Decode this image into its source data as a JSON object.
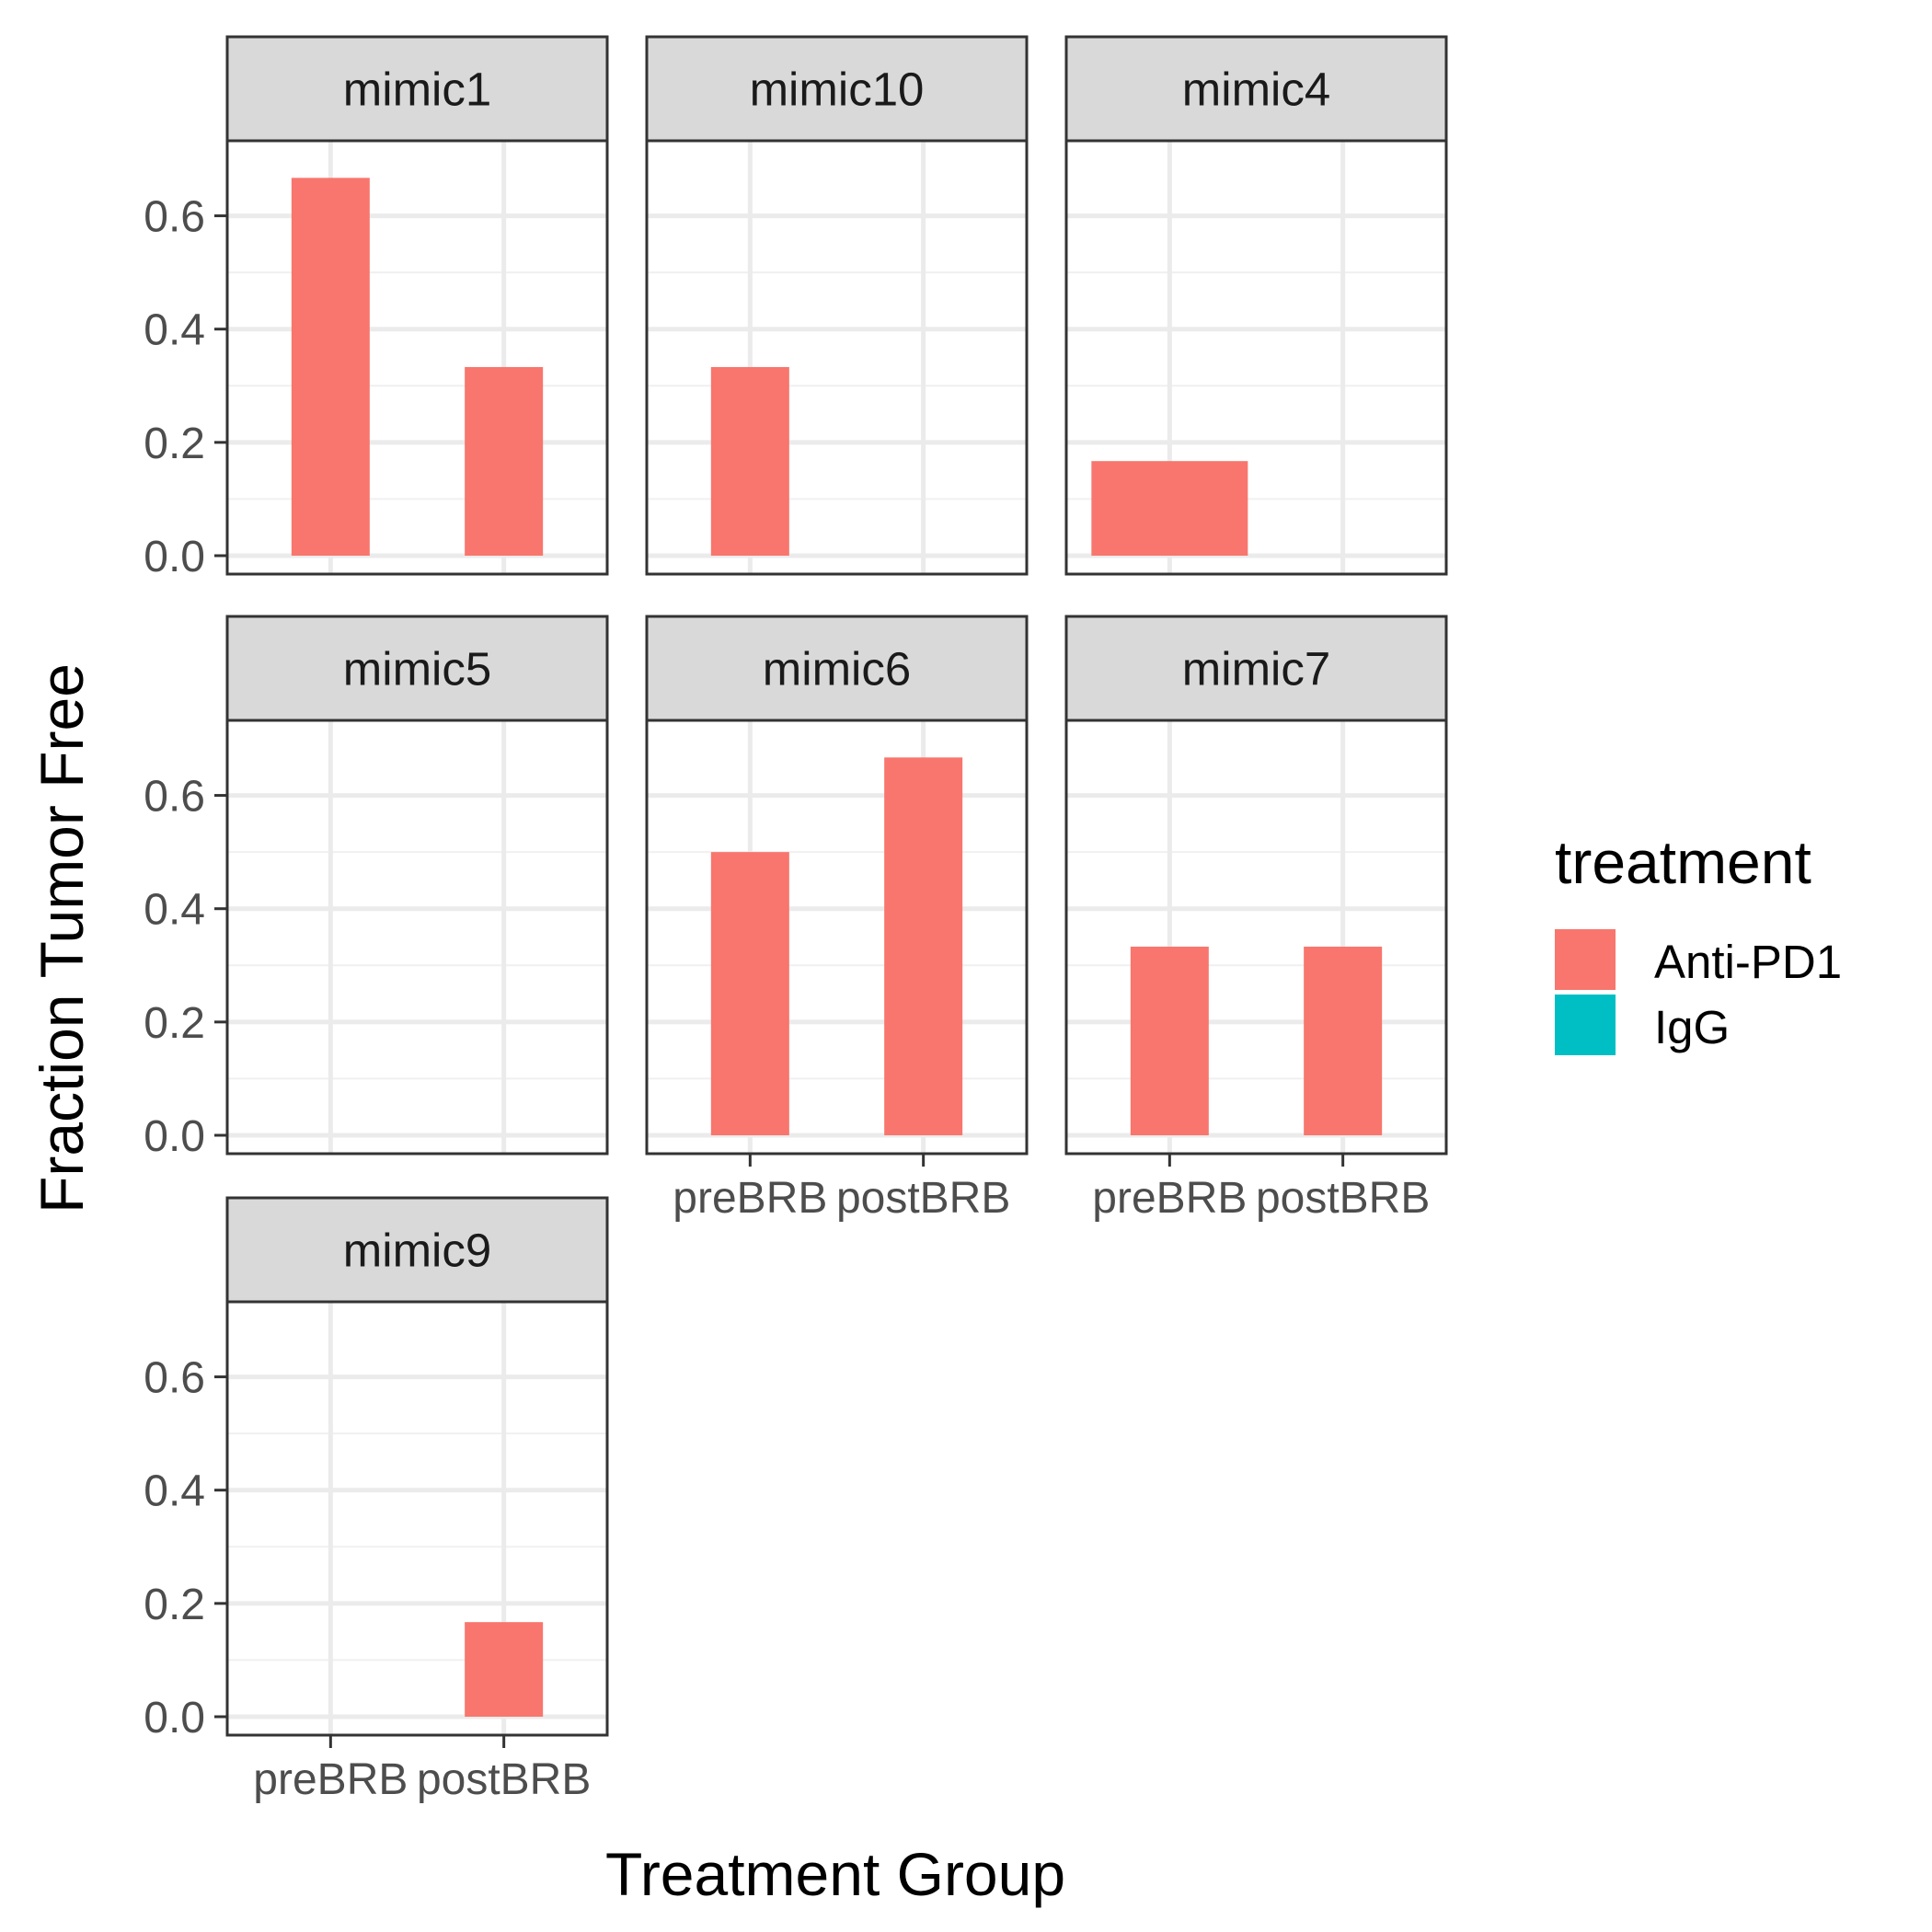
{
  "chart_data": {
    "type": "bar",
    "xlabel": "Treatment Group",
    "ylabel": "Fraction Tumor Free",
    "categories": [
      "preBRB",
      "postBRB"
    ],
    "ylim": [
      0,
      0.7
    ],
    "yticks": [
      0.0,
      0.2,
      0.4,
      0.6
    ],
    "ytick_labels": [
      "0.0",
      "0.2",
      "0.4",
      "0.6"
    ],
    "legend": {
      "title": "treatment",
      "position": "right",
      "entries": [
        {
          "name": "Anti-PD1",
          "color": "#F8766D"
        },
        {
          "name": "IgG",
          "color": "#00BFC4"
        }
      ]
    },
    "grid": true,
    "panels": [
      {
        "name": "mimic1",
        "bars": [
          {
            "x": "preBRB",
            "value": 0.667,
            "series": "Anti-PD1",
            "dodge": true
          },
          {
            "x": "postBRB",
            "value": 0.333,
            "series": "Anti-PD1",
            "dodge": true
          }
        ]
      },
      {
        "name": "mimic10",
        "bars": [
          {
            "x": "preBRB",
            "value": 0.333,
            "series": "Anti-PD1",
            "dodge": true
          }
        ]
      },
      {
        "name": "mimic4",
        "bars": [
          {
            "x": "preBRB",
            "value": 0.167,
            "series": "Anti-PD1",
            "dodge": false
          }
        ]
      },
      {
        "name": "mimic5",
        "bars": []
      },
      {
        "name": "mimic6",
        "bars": [
          {
            "x": "preBRB",
            "value": 0.5,
            "series": "Anti-PD1",
            "dodge": true
          },
          {
            "x": "postBRB",
            "value": 0.667,
            "series": "Anti-PD1",
            "dodge": true
          }
        ]
      },
      {
        "name": "mimic7",
        "bars": [
          {
            "x": "preBRB",
            "value": 0.333,
            "series": "Anti-PD1",
            "dodge": true
          },
          {
            "x": "postBRB",
            "value": 0.333,
            "series": "Anti-PD1",
            "dodge": true
          }
        ]
      },
      {
        "name": "mimic9",
        "bars": [
          {
            "x": "postBRB",
            "value": 0.167,
            "series": "Anti-PD1",
            "dodge": true
          }
        ]
      }
    ]
  }
}
